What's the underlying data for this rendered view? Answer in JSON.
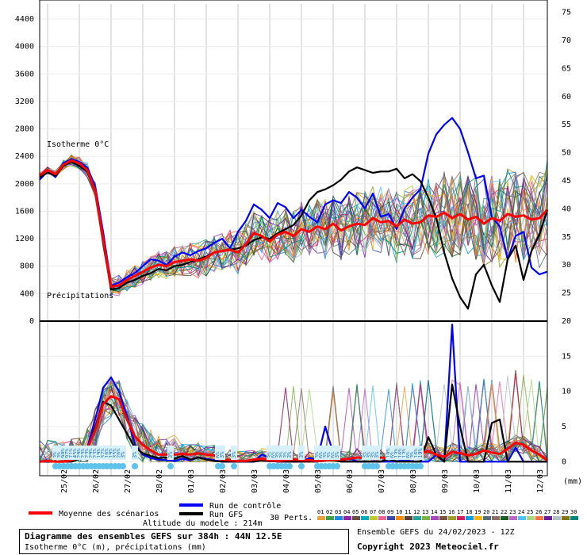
{
  "colors": {
    "mean": "#ff0000",
    "control": "#0000ff",
    "gfs": "#000000",
    "members": [
      "#e9a23b",
      "#43a047",
      "#1e88e5",
      "#8e24aa",
      "#6d4c41",
      "#00acc1",
      "#c0ca33",
      "#f06292",
      "#3949ab",
      "#fb8c00",
      "#5d4037",
      "#26a69a",
      "#7cb342",
      "#ab47bc",
      "#795548",
      "#9e9d24",
      "#d81b60",
      "#039be5",
      "#ffb300",
      "#546e7a",
      "#8d6e63",
      "#1b5e20",
      "#ba68c8",
      "#4fc3f7",
      "#aed581",
      "#ff7043",
      "#6a1b9a",
      "#b0bec5",
      "#827717",
      "#00897b"
    ]
  },
  "chart_data": [
    {
      "type": "line",
      "panel": "isotherm",
      "left_axis": {
        "ticks": [
          0,
          400,
          800,
          1200,
          1600,
          2000,
          2400,
          2800,
          3200,
          3600,
          4000,
          4400
        ],
        "ylim": [
          0,
          4620
        ]
      },
      "right_axis": {
        "ticks": [
          25,
          30,
          35,
          40,
          45,
          50,
          55,
          60,
          65,
          70,
          75
        ],
        "ylim": [
          20,
          76.5
        ]
      },
      "x_dates": [
        "25/02",
        "26/02",
        "27/02",
        "28/02",
        "01/03",
        "02/03",
        "03/03",
        "04/03",
        "05/03",
        "06/03",
        "07/03",
        "08/03",
        "09/03",
        "10/03",
        "11/03",
        "12/03"
      ],
      "x_hours": [
        0,
        6,
        12,
        18,
        24,
        30,
        36,
        42,
        48,
        54,
        60,
        66,
        72,
        78,
        84,
        90,
        96,
        102,
        108,
        114,
        120,
        126,
        132,
        138,
        144,
        150,
        156,
        162,
        168,
        174,
        180,
        186,
        192,
        198,
        204,
        210,
        216,
        222,
        228,
        234,
        240,
        246,
        252,
        258,
        264,
        270,
        276,
        282,
        288,
        294,
        300,
        306,
        312,
        318,
        324,
        330,
        336,
        342,
        348,
        354,
        360,
        366,
        372,
        378,
        384
      ],
      "annotations": [
        "Isotherme 0°C",
        "Précipitations"
      ],
      "series": [
        {
          "name": "Moyenne des scénarios",
          "values": [
            2120,
            2200,
            2140,
            2280,
            2340,
            2300,
            2200,
            1900,
            1200,
            500,
            520,
            600,
            660,
            720,
            780,
            820,
            800,
            860,
            880,
            900,
            880,
            920,
            1000,
            1020,
            1040,
            1000,
            1120,
            1280,
            1240,
            1160,
            1260,
            1300,
            1240,
            1340,
            1300,
            1380,
            1340,
            1420,
            1320,
            1380,
            1420,
            1400,
            1500,
            1440,
            1460,
            1380,
            1480,
            1420,
            1440,
            1540,
            1520,
            1580,
            1500,
            1560,
            1480,
            1520,
            1420,
            1500,
            1460,
            1560,
            1520,
            1540,
            1480,
            1500,
            1620
          ]
        },
        {
          "name": "Run de contrôle",
          "values": [
            2060,
            2180,
            2100,
            2300,
            2360,
            2320,
            2240,
            1960,
            1300,
            520,
            560,
            640,
            700,
            800,
            900,
            880,
            820,
            940,
            1000,
            960,
            1020,
            1060,
            1140,
            1200,
            1060,
            1300,
            1460,
            1700,
            1620,
            1500,
            1720,
            1660,
            1500,
            1620,
            1520,
            1440,
            1700,
            1760,
            1720,
            1880,
            1800,
            1640,
            1860,
            1520,
            1560,
            1340,
            1640,
            1800,
            1920,
            2440,
            2720,
            2860,
            2960,
            2800,
            2460,
            2080,
            2120,
            1520,
            1380,
            900,
            1240,
            1300,
            780,
            680,
            720
          ]
        },
        {
          "name": "Run GFS",
          "values": [
            2100,
            2160,
            2120,
            2260,
            2320,
            2260,
            2180,
            1880,
            1160,
            460,
            480,
            560,
            600,
            660,
            700,
            760,
            740,
            800,
            820,
            860,
            900,
            940,
            1000,
            1020,
            1040,
            1060,
            1100,
            1180,
            1220,
            1200,
            1280,
            1340,
            1400,
            1540,
            1760,
            1880,
            1920,
            1980,
            2060,
            2180,
            2240,
            2200,
            2160,
            2180,
            2180,
            2220,
            2080,
            2140,
            2040,
            1800,
            1500,
            1000,
            620,
            350,
            180,
            680,
            820,
            520,
            280,
            900,
            1100,
            600,
            1020,
            1260,
            1620
          ]
        }
      ]
    },
    {
      "type": "line",
      "panel": "precipitation",
      "right_axis": {
        "ticks": [
          0,
          5,
          10,
          15,
          20
        ],
        "ylim": [
          -2,
          20
        ]
      },
      "series": [
        {
          "name": "Moyenne des scénarios",
          "values": [
            0,
            0.1,
            0,
            0,
            0.2,
            0.6,
            1.8,
            4.5,
            8.2,
            9.3,
            8.9,
            6.0,
            3.6,
            2.4,
            1.6,
            1.0,
            1.0,
            1.0,
            1.1,
            1.0,
            1.2,
            1.0,
            0.9,
            0.3,
            0.2,
            0.1,
            0.1,
            0.3,
            0.4,
            0.2,
            0.1,
            0.2,
            0.3,
            0.2,
            0.2,
            0.1,
            0.2,
            0.3,
            0.3,
            0.4,
            0.6,
            0.5,
            0.4,
            0.6,
            0.5,
            0.8,
            0.6,
            0.9,
            1.2,
            1.5,
            1.0,
            0.7,
            1.4,
            1.2,
            0.9,
            1.1,
            1.6,
            1.3,
            1.1,
            1.8,
            2.7,
            2.4,
            1.6,
            1.0,
            0.2
          ]
        },
        {
          "name": "Run de contrôle",
          "values": [
            0,
            0,
            0,
            0,
            0,
            0.5,
            2.0,
            6.0,
            10.5,
            12.0,
            10.0,
            6.5,
            2.5,
            1.0,
            0.5,
            0.3,
            0.2,
            0.1,
            0.4,
            0.2,
            0.6,
            0.4,
            0.2,
            0,
            0,
            0,
            0,
            0,
            1.0,
            0.5,
            0,
            0,
            0,
            0,
            0.5,
            0.3,
            5.0,
            1.2,
            0,
            0.5,
            0,
            0,
            0,
            0,
            0,
            0,
            0.3,
            0,
            0,
            0,
            1.0,
            0,
            19.5,
            0,
            0,
            0,
            0,
            0,
            0,
            0,
            2.0,
            0,
            0,
            0,
            0
          ]
        },
        {
          "name": "Run GFS",
          "values": [
            0,
            0,
            0,
            0,
            0,
            0.4,
            1.5,
            5.0,
            8.5,
            8.0,
            6.0,
            4.0,
            2.0,
            1.2,
            0.8,
            0.5,
            0.6,
            0.4,
            0.8,
            0.3,
            0.6,
            0.3,
            0.1,
            0,
            0,
            0,
            0,
            0,
            0.2,
            0.1,
            0,
            0,
            0,
            0,
            0,
            0,
            0.2,
            0.3,
            0,
            0,
            0,
            0,
            0,
            0,
            0.4,
            0,
            0,
            0,
            0,
            3.5,
            1.0,
            0,
            11.0,
            5.0,
            0,
            0,
            0,
            5.5,
            6.0,
            0,
            0,
            0,
            0,
            0,
            0
          ]
        }
      ]
    }
  ],
  "labels": {
    "isotherme": "Isotherme 0°C",
    "precipitations": "Précipitations",
    "unit_mm": "(mm)",
    "legend_mean": "Moyenne des scénarios",
    "legend_control": "Run de contrôle",
    "legend_gfs": "Run GFS",
    "legend_perts": "30 Perts.",
    "member_numbers": [
      "01",
      "02",
      "03",
      "04",
      "05",
      "06",
      "07",
      "08",
      "09",
      "10",
      "11",
      "12",
      "13",
      "14",
      "15",
      "16",
      "17",
      "18",
      "19",
      "20",
      "21",
      "22",
      "23",
      "24",
      "25",
      "26",
      "27",
      "28",
      "29",
      "30"
    ],
    "altitude": "Altitude du modele : 214m"
  },
  "snow": {
    "hours": [
      12,
      15,
      18,
      21,
      24,
      27,
      30,
      33,
      36,
      39,
      42,
      45,
      48,
      51,
      54,
      57,
      60,
      63,
      72,
      99,
      135,
      138,
      147,
      174,
      177,
      180,
      183,
      186,
      189,
      198,
      210,
      213,
      216,
      219,
      222,
      225,
      246,
      249,
      252,
      255,
      264,
      267,
      270,
      273,
      276,
      279,
      282,
      285,
      288
    ],
    "percent": [
      "3%",
      "3%",
      "90%",
      "97%",
      "71%",
      "45%",
      "29%",
      "23%",
      "23%",
      "29%",
      "23%",
      "19%",
      "32%",
      "16%",
      "19%",
      "35%",
      "26%",
      "3%",
      "3%",
      "3%",
      "6%",
      "3%",
      "3%",
      "3%",
      "6%",
      "3%",
      "3%",
      "3%",
      "3%",
      "3%",
      "3%",
      "6%",
      "3%",
      "3%",
      "6%",
      "3%",
      "3%",
      "3%",
      "3%",
      "3%",
      "10%",
      "6%",
      "13%",
      "16%",
      "13%",
      "6%",
      "3%",
      "16%",
      "19%"
    ]
  },
  "footer": {
    "title": "Diagramme des ensembles GEFS sur 384h : 44N 12.5E",
    "subtitle": "Isotherme 0°C (m), précipitations (mm)",
    "ensemble": "Ensemble GEFS du 24/02/2023 - 12Z",
    "copyright": "Copyright 2023 Meteociel.fr"
  }
}
